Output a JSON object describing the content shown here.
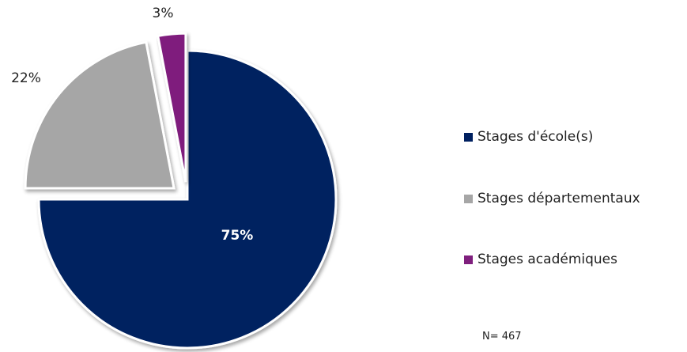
{
  "chart_data": {
    "type": "pie",
    "title": "",
    "slices": [
      {
        "label": "Stages d'école(s)",
        "value": 75,
        "display": "75%",
        "color": "#002060",
        "exploded": false
      },
      {
        "label": "Stages départementaux",
        "value": 22,
        "display": "22%",
        "color": "#a6a6a6",
        "exploded": true
      },
      {
        "label": "Stages académiques",
        "value": 3,
        "display": "3%",
        "color": "#7f1f7d",
        "exploded": true
      }
    ],
    "legend_position": "right",
    "note": "N= 467"
  }
}
